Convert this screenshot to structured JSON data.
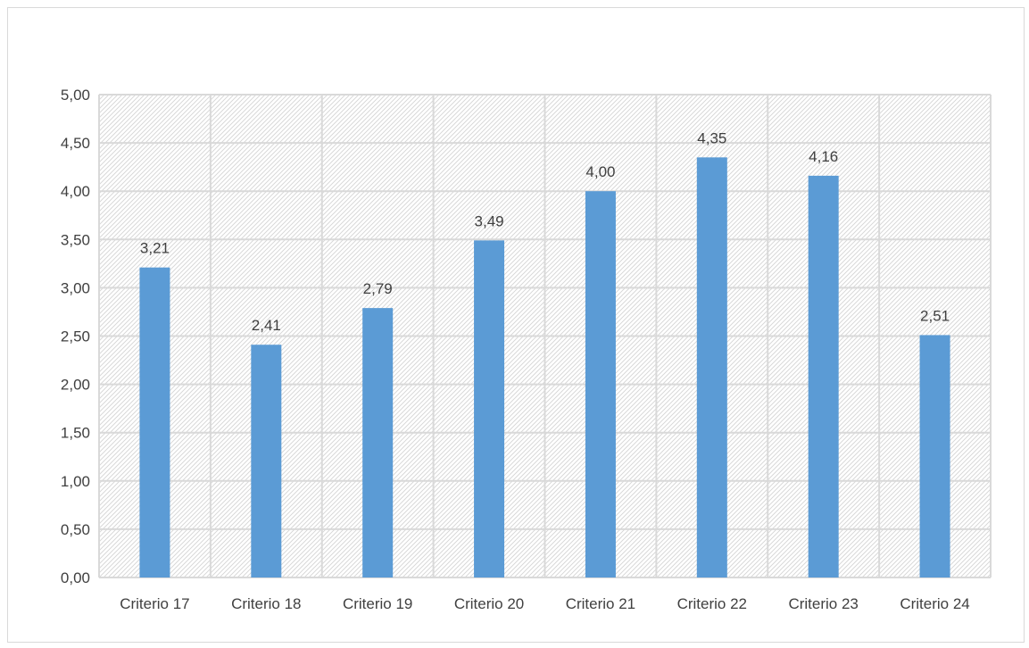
{
  "chart_data": {
    "type": "bar",
    "categories": [
      "Criterio 17",
      "Criterio 18",
      "Criterio 19",
      "Criterio 20",
      "Criterio 21",
      "Criterio 22",
      "Criterio 23",
      "Criterio 24"
    ],
    "values": [
      3.21,
      2.41,
      2.79,
      3.49,
      4.0,
      4.35,
      4.16,
      2.51
    ],
    "value_labels": [
      "3,21",
      "2,41",
      "2,79",
      "3,49",
      "4,00",
      "4,35",
      "4,16",
      "2,51"
    ],
    "yticks": [
      0,
      0.5,
      1,
      1.5,
      2,
      2.5,
      3,
      3.5,
      4,
      4.5,
      5
    ],
    "ytick_labels": [
      "0,00",
      "0,50",
      "1,00",
      "1,50",
      "2,00",
      "2,50",
      "3,00",
      "3,50",
      "4,00",
      "4,50",
      "5,00"
    ],
    "ylim": [
      0,
      5
    ],
    "title": "",
    "xlabel": "",
    "ylabel": "",
    "grid": true,
    "legend": "none",
    "bar_color": "#5b9bd5",
    "grid_color": "#d9d9d9",
    "plot_pattern": "diagonal-hatch"
  }
}
